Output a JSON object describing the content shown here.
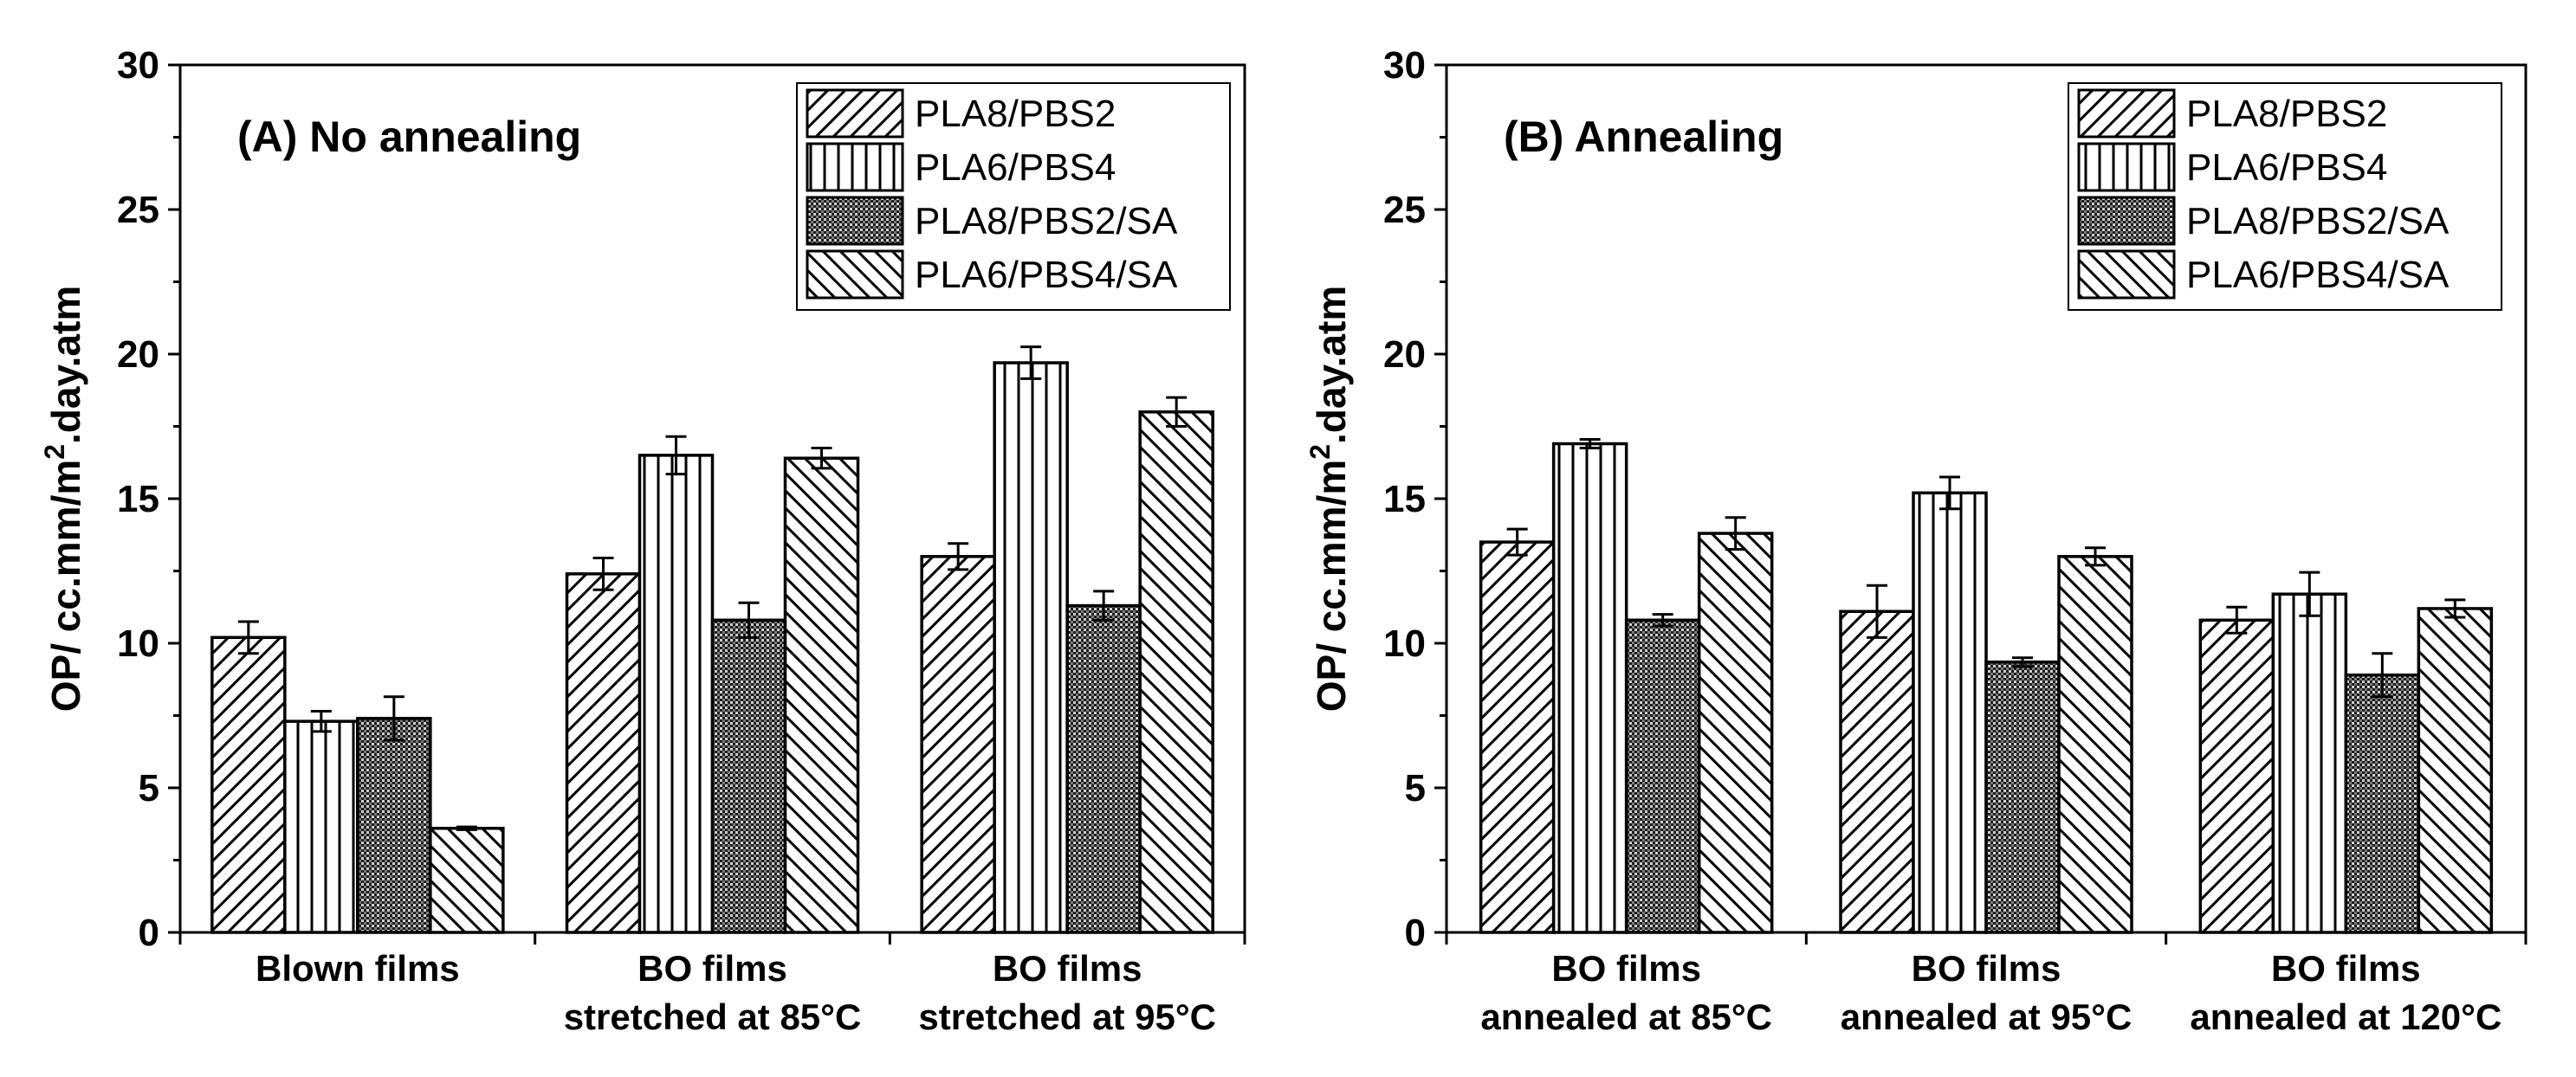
{
  "chart_data": [
    {
      "type": "bar",
      "panel_title": "(A) No annealing",
      "ylabel": "OP/ cc.mm/m².day.atm",
      "ylim": [
        0,
        30
      ],
      "yticks": [
        0,
        5,
        10,
        15,
        20,
        25,
        30
      ],
      "categories": [
        [
          "Blown films"
        ],
        [
          "BO films",
          "stretched at 85°C"
        ],
        [
          "BO films",
          "stretched at 95°C"
        ]
      ],
      "legend_position": "top-right",
      "series": [
        {
          "name": "PLA8/PBS2",
          "pattern": "diag-right",
          "values": [
            10.2,
            12.4,
            13.0
          ],
          "errors": [
            0.55,
            0.55,
            0.45
          ]
        },
        {
          "name": "PLA6/PBS4",
          "pattern": "vertical",
          "values": [
            7.3,
            16.5,
            19.7
          ],
          "errors": [
            0.35,
            0.65,
            0.55
          ]
        },
        {
          "name": "PLA8/PBS2/SA",
          "pattern": "dots",
          "values": [
            7.4,
            10.8,
            11.3
          ],
          "errors": [
            0.75,
            0.6,
            0.5
          ]
        },
        {
          "name": "PLA6/PBS4/SA",
          "pattern": "diag-left",
          "values": [
            3.6,
            16.4,
            18.0
          ],
          "errors": [
            0.05,
            0.35,
            0.5
          ]
        }
      ]
    },
    {
      "type": "bar",
      "panel_title": "(B) Annealing",
      "ylabel": "OP/ cc.mm/m².day.atm",
      "ylim": [
        0,
        30
      ],
      "yticks": [
        0,
        5,
        10,
        15,
        20,
        25,
        30
      ],
      "categories": [
        [
          "BO films",
          "annealed at 85°C"
        ],
        [
          "BO films",
          "annealed at 95°C"
        ],
        [
          "BO films",
          "annealed at 120°C"
        ]
      ],
      "legend_position": "top-right",
      "series": [
        {
          "name": "PLA8/PBS2",
          "pattern": "diag-right",
          "values": [
            13.5,
            11.1,
            10.8
          ],
          "errors": [
            0.45,
            0.9,
            0.45
          ]
        },
        {
          "name": "PLA6/PBS4",
          "pattern": "vertical",
          "values": [
            16.9,
            15.2,
            11.7
          ],
          "errors": [
            0.15,
            0.55,
            0.75
          ]
        },
        {
          "name": "PLA8/PBS2/SA",
          "pattern": "dots",
          "values": [
            10.8,
            9.35,
            8.9
          ],
          "errors": [
            0.2,
            0.15,
            0.75
          ]
        },
        {
          "name": "PLA6/PBS4/SA",
          "pattern": "diag-left",
          "values": [
            13.8,
            13.0,
            11.2
          ],
          "errors": [
            0.55,
            0.3,
            0.3
          ]
        }
      ]
    }
  ]
}
